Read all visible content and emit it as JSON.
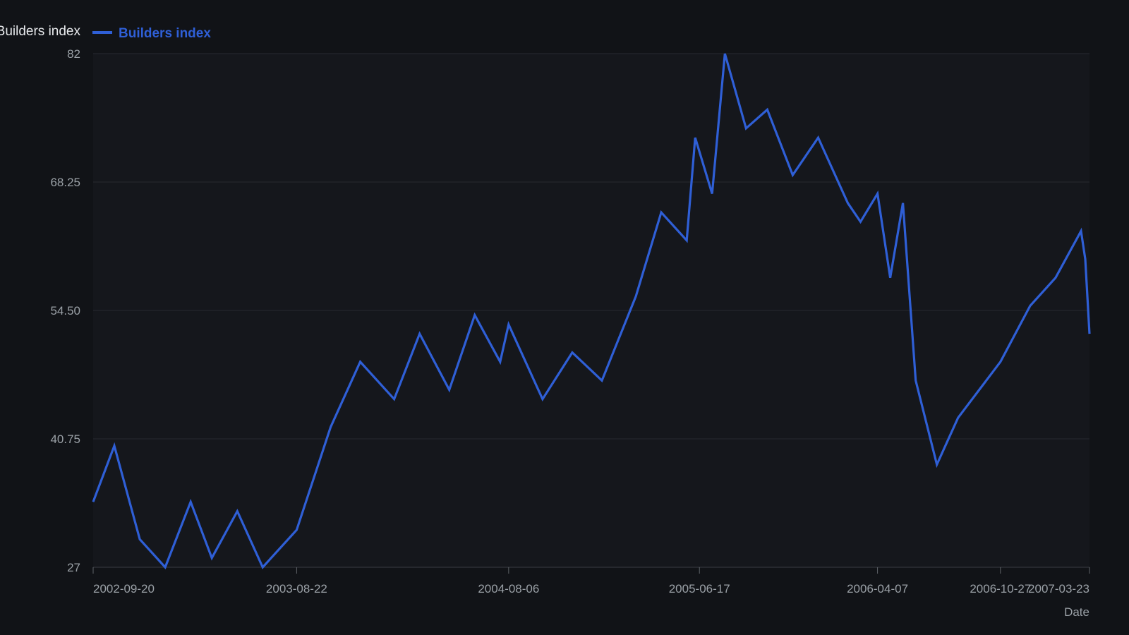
{
  "chart_data": {
    "type": "line",
    "title": "",
    "xlabel": "Date",
    "ylabel": "Builders index",
    "ylim": [
      27,
      82
    ],
    "y_ticks": [
      "27",
      "40.75",
      "54.50",
      "68.25",
      "82"
    ],
    "x_ticks": [
      "2002-09-20",
      "2003-08-22",
      "2004-08-06",
      "2005-06-17",
      "2006-04-07",
      "2006-10-27",
      "2007-03-23"
    ],
    "grid": true,
    "legend": "top-left",
    "series": [
      {
        "name": "Builders index",
        "color": "#2f5fd6",
        "points": [
          [
            "2002-09-20",
            34.0
          ],
          [
            "2002-10-25",
            40.0
          ],
          [
            "2002-12-06",
            30.0
          ],
          [
            "2003-01-17",
            27.0
          ],
          [
            "2003-02-28",
            34.0
          ],
          [
            "2003-04-04",
            28.0
          ],
          [
            "2003-05-16",
            33.0
          ],
          [
            "2003-06-27",
            27.0
          ],
          [
            "2003-08-22",
            31.0
          ],
          [
            "2003-10-17",
            42.0
          ],
          [
            "2003-12-05",
            49.0
          ],
          [
            "2004-01-30",
            45.0
          ],
          [
            "2004-03-12",
            52.0
          ],
          [
            "2004-04-30",
            46.0
          ],
          [
            "2004-06-11",
            54.0
          ],
          [
            "2004-07-23",
            49.0
          ],
          [
            "2004-08-06",
            53.0
          ],
          [
            "2004-10-01",
            45.0
          ],
          [
            "2004-11-19",
            50.0
          ],
          [
            "2005-01-07",
            47.0
          ],
          [
            "2005-03-04",
            56.0
          ],
          [
            "2005-04-15",
            65.0
          ],
          [
            "2005-05-27",
            62.0
          ],
          [
            "2005-06-10",
            73.0
          ],
          [
            "2005-07-08",
            67.0
          ],
          [
            "2005-07-29",
            82.0
          ],
          [
            "2005-09-02",
            74.0
          ],
          [
            "2005-10-07",
            76.0
          ],
          [
            "2005-11-18",
            69.0
          ],
          [
            "2005-12-30",
            73.0
          ],
          [
            "2006-02-17",
            66.0
          ],
          [
            "2006-03-10",
            64.0
          ],
          [
            "2006-04-07",
            67.0
          ],
          [
            "2006-04-28",
            58.0
          ],
          [
            "2006-05-19",
            66.0
          ],
          [
            "2006-06-09",
            47.0
          ],
          [
            "2006-07-14",
            38.0
          ],
          [
            "2006-08-18",
            43.0
          ],
          [
            "2006-10-27",
            49.0
          ],
          [
            "2006-12-15",
            55.0
          ],
          [
            "2007-01-26",
            58.0
          ],
          [
            "2007-03-09",
            63.0
          ],
          [
            "2007-03-16",
            60.0
          ],
          [
            "2007-03-23",
            52.0
          ]
        ]
      }
    ]
  }
}
